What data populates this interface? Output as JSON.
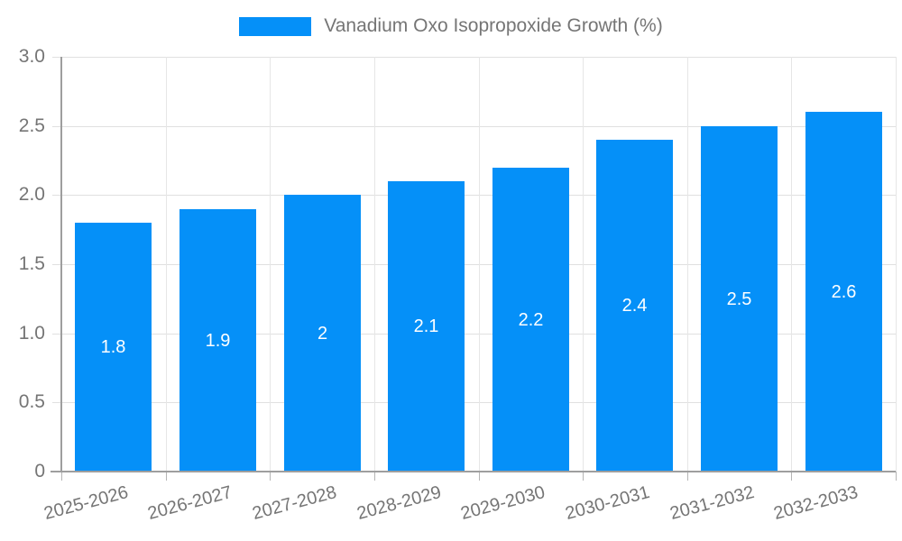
{
  "legend": {
    "label": "Vanadium Oxo Isopropoxide Growth (%)"
  },
  "chart_data": {
    "type": "bar",
    "title": "Vanadium Oxo Isopropoxide Growth (%)",
    "categories": [
      "2025-2026",
      "2026-2027",
      "2027-2028",
      "2028-2029",
      "2029-2030",
      "2030-2031",
      "2031-2032",
      "2032-2033"
    ],
    "values": [
      1.8,
      1.9,
      2,
      2.1,
      2.2,
      2.4,
      2.5,
      2.6
    ],
    "bar_labels": [
      "1.8",
      "1.9",
      "2",
      "2.1",
      "2.2",
      "2.4",
      "2.5",
      "2.6"
    ],
    "xlabel": "",
    "ylabel": "",
    "ylim": [
      0,
      3
    ],
    "yticks": [
      0,
      0.5,
      1,
      1.5,
      2,
      2.5,
      3
    ],
    "ytick_labels": [
      "0",
      "0.5",
      "1.0",
      "1.5",
      "2.0",
      "2.5",
      "3.0"
    ],
    "grid": true,
    "legend_position": "top-center",
    "colors": {
      "bar": "#0590f8",
      "axis": "#9e9e9e",
      "grid": "#e0e0e0",
      "text": "#757575",
      "bar_label": "#ffffff",
      "background": "#ffffff"
    }
  }
}
